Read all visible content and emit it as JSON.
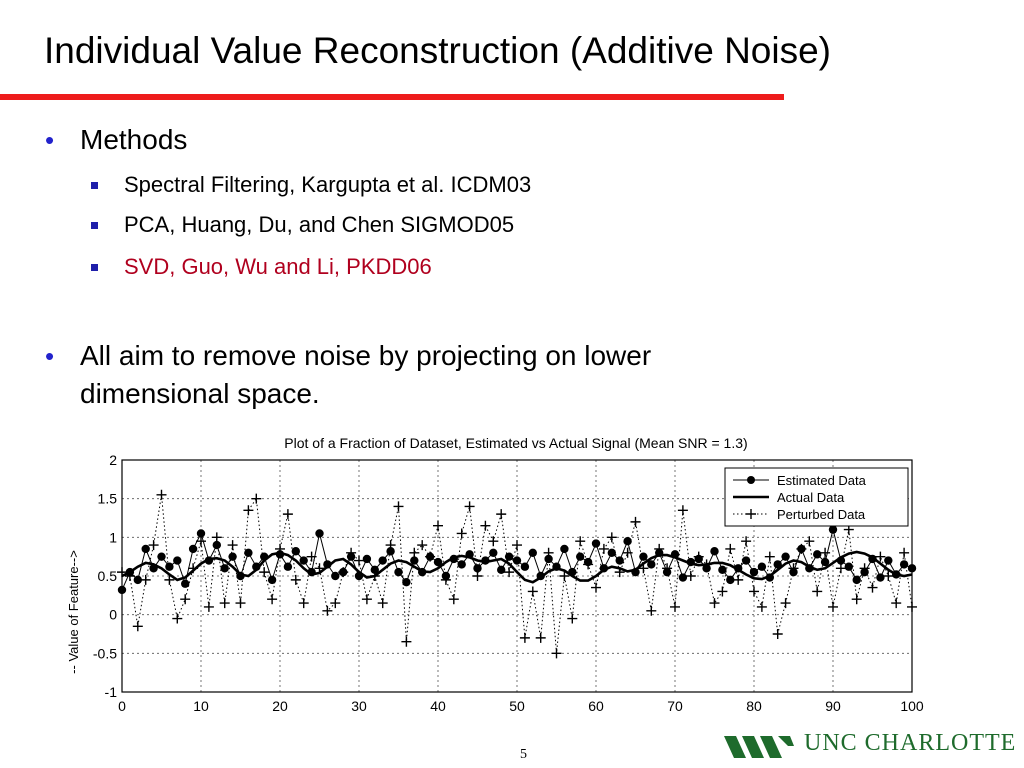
{
  "slide": {
    "title": "Individual Value Reconstruction (Additive Noise)",
    "bullets": [
      {
        "text": "Methods",
        "sub": [
          "Spectral Filtering,  Kargupta et al. ICDM03",
          "PCA, Huang, Du, and Chen SIGMOD05",
          "SVD, Guo, Wu and Li, PKDD06"
        ]
      },
      {
        "text": "All aim to remove noise by projecting on lower dimensional space."
      }
    ],
    "page_number": "5",
    "logo_text": "UNC CHARLOTTE"
  },
  "colors": {
    "accent_rule": "#ee1c1c",
    "highlight_text": "#b0001e",
    "bullet": "#2222cc",
    "logo": "#1e6b2c"
  },
  "chart_data": {
    "type": "line",
    "title": "Plot of a Fraction of Dataset, Estimated vs Actual Signal (Mean SNR = 1.3)",
    "ylabel": "-- Value of Feature-->",
    "xlabel": "",
    "xlim": [
      0,
      100
    ],
    "ylim": [
      -1,
      2
    ],
    "xticks": [
      0,
      10,
      20,
      30,
      40,
      50,
      60,
      70,
      80,
      90,
      100
    ],
    "yticks": [
      -1,
      -0.5,
      0,
      0.5,
      1,
      1.5,
      2
    ],
    "ytick_labels": [
      "-1",
      "-0.5",
      "0",
      "0.5",
      "1",
      "1.5",
      "2"
    ],
    "grid": true,
    "legend_position": "top-right",
    "x": [
      0,
      1,
      2,
      3,
      4,
      5,
      6,
      7,
      8,
      9,
      10,
      11,
      12,
      13,
      14,
      15,
      16,
      17,
      18,
      19,
      20,
      21,
      22,
      23,
      24,
      25,
      26,
      27,
      28,
      29,
      30,
      31,
      32,
      33,
      34,
      35,
      36,
      37,
      38,
      39,
      40,
      41,
      42,
      43,
      44,
      45,
      46,
      47,
      48,
      49,
      50,
      51,
      52,
      53,
      54,
      55,
      56,
      57,
      58,
      59,
      60,
      61,
      62,
      63,
      64,
      65,
      66,
      67,
      68,
      69,
      70,
      71,
      72,
      73,
      74,
      75,
      76,
      77,
      78,
      79,
      80,
      81,
      82,
      83,
      84,
      85,
      86,
      87,
      88,
      89,
      90,
      91,
      92,
      93,
      94,
      95,
      96,
      97,
      98,
      99,
      100
    ],
    "series": [
      {
        "name": "Estimated Data",
        "style": "dot-line",
        "values": [
          0.32,
          0.55,
          0.45,
          0.85,
          0.6,
          0.75,
          0.62,
          0.7,
          0.4,
          0.85,
          1.05,
          0.7,
          0.9,
          0.6,
          0.75,
          0.5,
          0.8,
          0.62,
          0.75,
          0.45,
          0.78,
          0.62,
          0.82,
          0.7,
          0.55,
          1.05,
          0.65,
          0.5,
          0.55,
          0.75,
          0.5,
          0.72,
          0.58,
          0.7,
          0.82,
          0.55,
          0.42,
          0.7,
          0.55,
          0.75,
          0.68,
          0.5,
          0.72,
          0.65,
          0.78,
          0.6,
          0.7,
          0.8,
          0.58,
          0.75,
          0.7,
          0.62,
          0.8,
          0.5,
          0.72,
          0.62,
          0.85,
          0.55,
          0.75,
          0.68,
          0.92,
          0.6,
          0.8,
          0.7,
          0.95,
          0.55,
          0.75,
          0.65,
          0.8,
          0.55,
          0.78,
          0.48,
          0.68,
          0.72,
          0.6,
          0.82,
          0.58,
          0.45,
          0.6,
          0.7,
          0.55,
          0.62,
          0.48,
          0.65,
          0.75,
          0.55,
          0.85,
          0.6,
          0.78,
          0.68,
          1.1,
          0.7,
          0.62,
          0.45,
          0.55,
          0.72,
          0.48,
          0.7,
          0.52,
          0.65,
          0.6
        ]
      },
      {
        "name": "Actual Data",
        "style": "solid",
        "values": [
          0.5,
          0.55,
          0.62,
          0.67,
          0.65,
          0.6,
          0.52,
          0.45,
          0.48,
          0.57,
          0.66,
          0.72,
          0.73,
          0.7,
          0.62,
          0.52,
          0.5,
          0.58,
          0.7,
          0.78,
          0.8,
          0.77,
          0.7,
          0.6,
          0.52,
          0.54,
          0.62,
          0.7,
          0.72,
          0.65,
          0.55,
          0.48,
          0.5,
          0.58,
          0.66,
          0.7,
          0.68,
          0.62,
          0.56,
          0.55,
          0.6,
          0.68,
          0.74,
          0.76,
          0.74,
          0.7,
          0.68,
          0.7,
          0.72,
          0.66,
          0.55,
          0.45,
          0.42,
          0.48,
          0.56,
          0.6,
          0.57,
          0.5,
          0.44,
          0.44,
          0.5,
          0.58,
          0.62,
          0.6,
          0.56,
          0.58,
          0.66,
          0.73,
          0.77,
          0.77,
          0.74,
          0.7,
          0.66,
          0.64,
          0.65,
          0.67,
          0.67,
          0.64,
          0.58,
          0.52,
          0.47,
          0.46,
          0.5,
          0.58,
          0.66,
          0.7,
          0.68,
          0.62,
          0.58,
          0.6,
          0.67,
          0.74,
          0.79,
          0.81,
          0.79,
          0.74,
          0.66,
          0.58,
          0.52,
          0.5,
          0.52
        ]
      },
      {
        "name": "Perturbed Data",
        "style": "plus-dotted",
        "values": [
          0.55,
          0.5,
          -0.15,
          0.45,
          0.9,
          1.55,
          0.45,
          -0.05,
          0.2,
          0.6,
          0.95,
          0.1,
          1.0,
          0.15,
          0.9,
          0.15,
          1.35,
          1.5,
          0.55,
          0.2,
          0.85,
          1.3,
          0.45,
          0.15,
          0.75,
          0.6,
          0.05,
          0.15,
          0.55,
          0.8,
          0.7,
          0.2,
          0.5,
          0.15,
          0.9,
          1.4,
          -0.35,
          0.8,
          0.9,
          0.75,
          1.15,
          0.45,
          0.2,
          1.05,
          1.4,
          0.5,
          1.15,
          0.95,
          1.3,
          0.55,
          0.9,
          -0.3,
          0.3,
          -0.3,
          0.8,
          -0.5,
          0.5,
          -0.05,
          0.95,
          0.65,
          0.35,
          0.85,
          1.0,
          0.55,
          0.8,
          1.2,
          0.6,
          0.05,
          0.85,
          0.6,
          0.1,
          1.35,
          0.5,
          0.75,
          0.65,
          0.15,
          0.3,
          0.85,
          0.45,
          0.95,
          0.3,
          0.1,
          0.75,
          -0.25,
          0.15,
          0.6,
          0.85,
          0.95,
          0.3,
          0.8,
          0.1,
          0.6,
          1.1,
          0.2,
          0.6,
          0.35,
          0.75,
          0.5,
          0.15,
          0.8,
          0.1
        ]
      }
    ]
  }
}
